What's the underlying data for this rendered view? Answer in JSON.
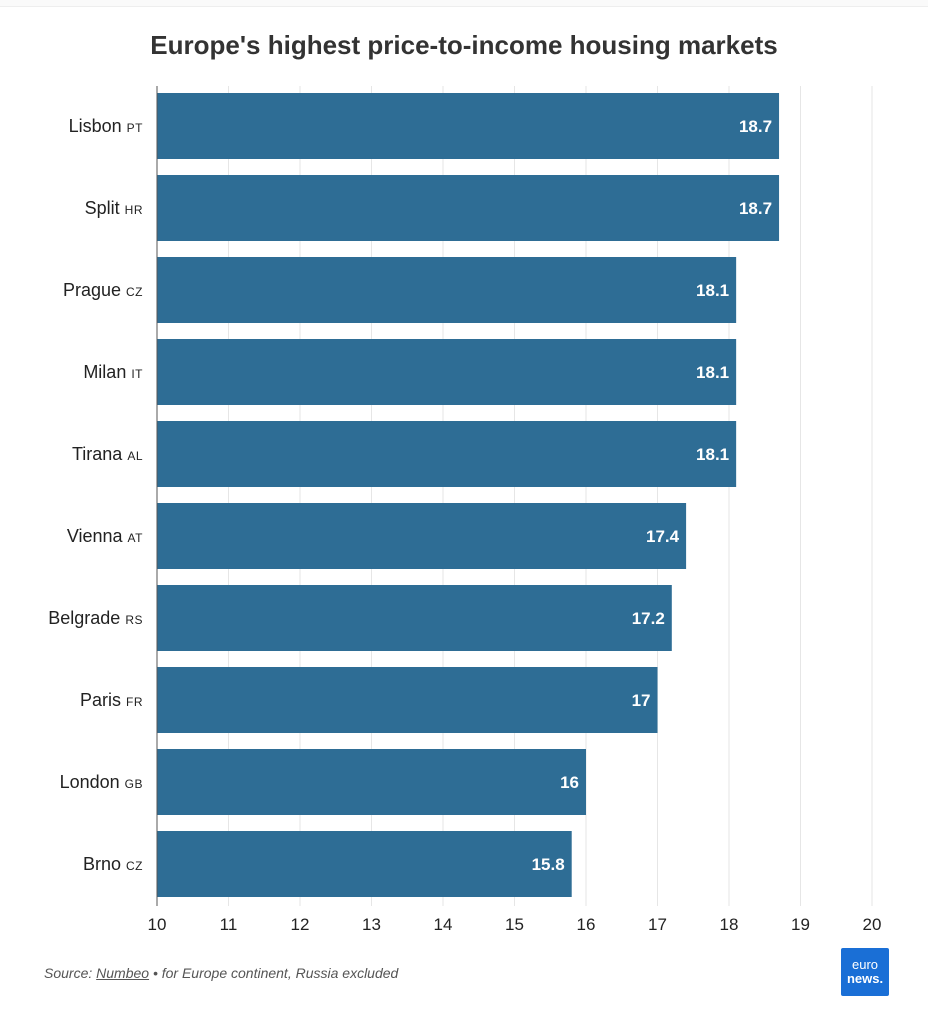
{
  "chart_data": {
    "type": "bar",
    "orientation": "horizontal",
    "title": "Europe's highest price-to-income housing markets",
    "categories": [
      "Lisbon",
      "Split",
      "Prague",
      "Milan",
      "Tirana",
      "Vienna",
      "Belgrade",
      "Paris",
      "London",
      "Brno"
    ],
    "category_codes": [
      "PT",
      "HR",
      "CZ",
      "IT",
      "AL",
      "AT",
      "RS",
      "FR",
      "GB",
      "CZ"
    ],
    "values": [
      18.7,
      18.7,
      18.1,
      18.1,
      18.1,
      17.4,
      17.2,
      17,
      16,
      15.8
    ],
    "value_labels": [
      "18.7",
      "18.7",
      "18.1",
      "18.1",
      "18.1",
      "17.4",
      "17.2",
      "17",
      "16",
      "15.8"
    ],
    "xlim": [
      10,
      20
    ],
    "xticks": [
      "10",
      "11",
      "12",
      "13",
      "14",
      "15",
      "16",
      "17",
      "18",
      "19",
      "20"
    ],
    "grid": true,
    "bar_color": "#2e6d95"
  },
  "footer": {
    "source_prefix": "Source: ",
    "source_name": "Numbeo",
    "source_note": " • for Europe continent, Russia excluded"
  },
  "brand": {
    "line1": "euro",
    "line2": "news.",
    "color": "#1a6fd6"
  }
}
